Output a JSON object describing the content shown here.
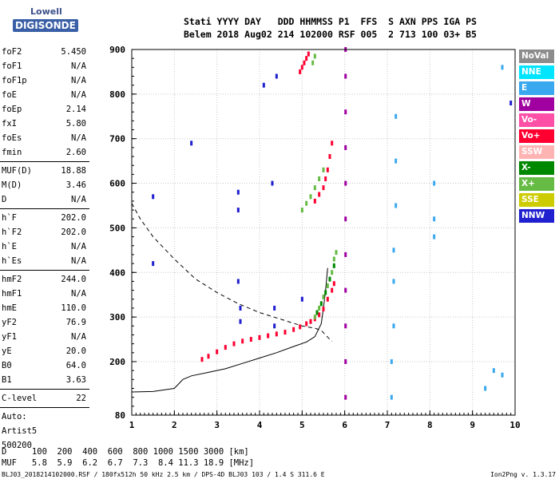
{
  "logo": {
    "top": "Lowell",
    "bottom": "DIGISONDE"
  },
  "header": {
    "line1": "Stati YYYY DAY   DDD HHMMSS P1  FFS  S AXN PPS IGA PS",
    "line2": "Belem 2018 Aug02 214 102000 RSF 005  2 713 100 03+ B5"
  },
  "params": [
    {
      "label": "foF2",
      "value": "5.450"
    },
    {
      "label": "foF1",
      "value": "N/A"
    },
    {
      "label": "foF1p",
      "value": "N/A"
    },
    {
      "label": "foE",
      "value": "N/A"
    },
    {
      "label": "foEp",
      "value": "2.14"
    },
    {
      "label": "fxI",
      "value": "5.80"
    },
    {
      "label": "foEs",
      "value": "N/A"
    },
    {
      "label": "fmin",
      "value": "2.60"
    },
    {
      "label": "MUF(D)",
      "value": "18.88"
    },
    {
      "label": "M(D)",
      "value": "3.46"
    },
    {
      "label": "D",
      "value": "N/A"
    },
    {
      "label": "h`F",
      "value": "202.0"
    },
    {
      "label": "h`F2",
      "value": "202.0"
    },
    {
      "label": "h`E",
      "value": "N/A"
    },
    {
      "label": "h`Es",
      "value": "N/A"
    },
    {
      "label": "hmF2",
      "value": "244.0"
    },
    {
      "label": "hmF1",
      "value": "N/A"
    },
    {
      "label": "hmE",
      "value": "110.0"
    },
    {
      "label": "yF2",
      "value": "76.9"
    },
    {
      "label": "yF1",
      "value": "N/A"
    },
    {
      "label": "yE",
      "value": "20.0"
    },
    {
      "label": "B0",
      "value": "64.0"
    },
    {
      "label": "B1",
      "value": "3.63"
    },
    {
      "label": "C-level",
      "value": "22"
    },
    {
      "label": "Auto:",
      "value": ""
    },
    {
      "label": "Artist5",
      "value": ""
    },
    {
      "label": "500200",
      "value": ""
    }
  ],
  "legend": [
    {
      "label": "NoVal",
      "color": "#8c8c8c"
    },
    {
      "label": "NNE",
      "color": "#00e5ff"
    },
    {
      "label": "E",
      "color": "#3aa8ee"
    },
    {
      "label": "W",
      "color": "#a000a0"
    },
    {
      "label": "Vo-",
      "color": "#ff50a8"
    },
    {
      "label": "Vo+",
      "color": "#ff0030"
    },
    {
      "label": "SSW",
      "color": "#ffb4b4"
    },
    {
      "label": "X-",
      "color": "#008800"
    },
    {
      "label": "X+",
      "color": "#66bb44"
    },
    {
      "label": "SSE",
      "color": "#cccc00"
    },
    {
      "label": "NNW",
      "color": "#2020d0"
    }
  ],
  "footer": {
    "line1": "D     100  200  400  600  800 1000 1500 3000 [km]",
    "line2": "MUF   5.8  5.9  6.2  6.7  7.3  8.4 11.3 18.9 [MHz]",
    "source": "BLJ03_2018214102000.RSF / 180fx512h 50 kHz 2.5 km / DPS-4D BLJ03 103 / 1.4 S 311.6 E",
    "version": "Ion2Png v. 1.3.17"
  },
  "chart_data": {
    "type": "scatter",
    "xlim": [
      1,
      10
    ],
    "ylim": [
      80,
      900
    ],
    "xticks": [
      1,
      2,
      3,
      4,
      5,
      6,
      7,
      8,
      9,
      10
    ],
    "yticks": [
      80,
      200,
      300,
      400,
      500,
      600,
      700,
      800,
      900
    ],
    "grid": true,
    "legend_position": "right",
    "series": [
      {
        "name": "Vo+",
        "color": "#ff0030",
        "points": [
          [
            2.65,
            205
          ],
          [
            2.8,
            212
          ],
          [
            3.0,
            222
          ],
          [
            3.2,
            232
          ],
          [
            3.4,
            240
          ],
          [
            3.6,
            246
          ],
          [
            3.8,
            250
          ],
          [
            4.0,
            254
          ],
          [
            4.2,
            258
          ],
          [
            4.4,
            262
          ],
          [
            4.6,
            266
          ],
          [
            4.8,
            272
          ],
          [
            4.95,
            278
          ],
          [
            5.1,
            285
          ],
          [
            5.2,
            290
          ],
          [
            5.3,
            296
          ],
          [
            5.4,
            305
          ],
          [
            5.5,
            318
          ],
          [
            5.6,
            340
          ],
          [
            5.7,
            360
          ],
          [
            5.75,
            375
          ],
          [
            5.3,
            560
          ],
          [
            5.4,
            575
          ],
          [
            5.5,
            590
          ],
          [
            5.55,
            610
          ],
          [
            5.6,
            630
          ],
          [
            5.65,
            660
          ],
          [
            5.7,
            690
          ],
          [
            5.0,
            860
          ],
          [
            5.05,
            870
          ],
          [
            5.1,
            880
          ],
          [
            5.15,
            890
          ],
          [
            4.95,
            850
          ]
        ]
      },
      {
        "name": "X+",
        "color": "#66bb44",
        "points": [
          [
            5.3,
            300
          ],
          [
            5.4,
            320
          ],
          [
            5.5,
            345
          ],
          [
            5.6,
            370
          ],
          [
            5.7,
            400
          ],
          [
            5.75,
            430
          ],
          [
            5.8,
            445
          ],
          [
            5.0,
            540
          ],
          [
            5.1,
            555
          ],
          [
            5.2,
            570
          ],
          [
            5.3,
            590
          ],
          [
            5.4,
            610
          ],
          [
            5.5,
            630
          ],
          [
            5.25,
            870
          ],
          [
            5.3,
            885
          ]
        ]
      },
      {
        "name": "X-",
        "color": "#008800",
        "points": [
          [
            5.35,
            310
          ],
          [
            5.45,
            330
          ],
          [
            5.55,
            355
          ],
          [
            5.65,
            385
          ],
          [
            5.75,
            415
          ]
        ]
      },
      {
        "name": "W",
        "color": "#a000a0",
        "points": [
          [
            6.02,
            120
          ],
          [
            6.02,
            200
          ],
          [
            6.02,
            280
          ],
          [
            6.02,
            360
          ],
          [
            6.02,
            440
          ],
          [
            6.02,
            520
          ],
          [
            6.02,
            600
          ],
          [
            6.02,
            680
          ],
          [
            6.02,
            760
          ],
          [
            6.02,
            840
          ],
          [
            6.02,
            900
          ]
        ]
      },
      {
        "name": "E",
        "color": "#3aa8ee",
        "points": [
          [
            7.1,
            120
          ],
          [
            7.1,
            200
          ],
          [
            7.15,
            280
          ],
          [
            7.15,
            380
          ],
          [
            7.15,
            450
          ],
          [
            7.2,
            550
          ],
          [
            7.2,
            650
          ],
          [
            7.2,
            750
          ],
          [
            8.1,
            480
          ],
          [
            8.1,
            520
          ],
          [
            8.1,
            600
          ],
          [
            9.3,
            140
          ],
          [
            9.5,
            180
          ],
          [
            9.7,
            170
          ],
          [
            9.7,
            860
          ]
        ]
      },
      {
        "name": "NNW",
        "color": "#2020d0",
        "points": [
          [
            3.5,
            540
          ],
          [
            3.5,
            580
          ],
          [
            3.5,
            380
          ],
          [
            3.55,
            320
          ],
          [
            3.55,
            290
          ],
          [
            4.3,
            600
          ],
          [
            4.35,
            320
          ],
          [
            4.35,
            280
          ],
          [
            4.4,
            840
          ],
          [
            4.1,
            820
          ],
          [
            2.4,
            690
          ],
          [
            1.5,
            420
          ],
          [
            1.5,
            570
          ],
          [
            5.0,
            340
          ],
          [
            9.9,
            780
          ]
        ]
      }
    ],
    "virtual_height_profile": [
      [
        1.0,
        132
      ],
      [
        1.5,
        133
      ],
      [
        2.0,
        140
      ],
      [
        2.1,
        150
      ],
      [
        2.2,
        160
      ],
      [
        2.4,
        168
      ],
      [
        2.8,
        176
      ],
      [
        3.2,
        184
      ],
      [
        3.6,
        196
      ],
      [
        4.0,
        208
      ],
      [
        4.4,
        220
      ],
      [
        4.8,
        234
      ],
      [
        5.1,
        244
      ],
      [
        5.3,
        256
      ],
      [
        5.45,
        285
      ],
      [
        5.5,
        320
      ],
      [
        5.55,
        360
      ],
      [
        5.6,
        410
      ]
    ],
    "mufd_dashed_curve": [
      [
        1.0,
        555
      ],
      [
        1.2,
        520
      ],
      [
        1.5,
        480
      ],
      [
        2.0,
        430
      ],
      [
        2.5,
        385
      ],
      [
        3.0,
        355
      ],
      [
        3.5,
        330
      ],
      [
        4.0,
        310
      ],
      [
        4.5,
        295
      ],
      [
        5.0,
        280
      ],
      [
        5.3,
        275
      ],
      [
        5.45,
        270
      ],
      [
        5.6,
        255
      ],
      [
        5.7,
        245
      ]
    ]
  }
}
